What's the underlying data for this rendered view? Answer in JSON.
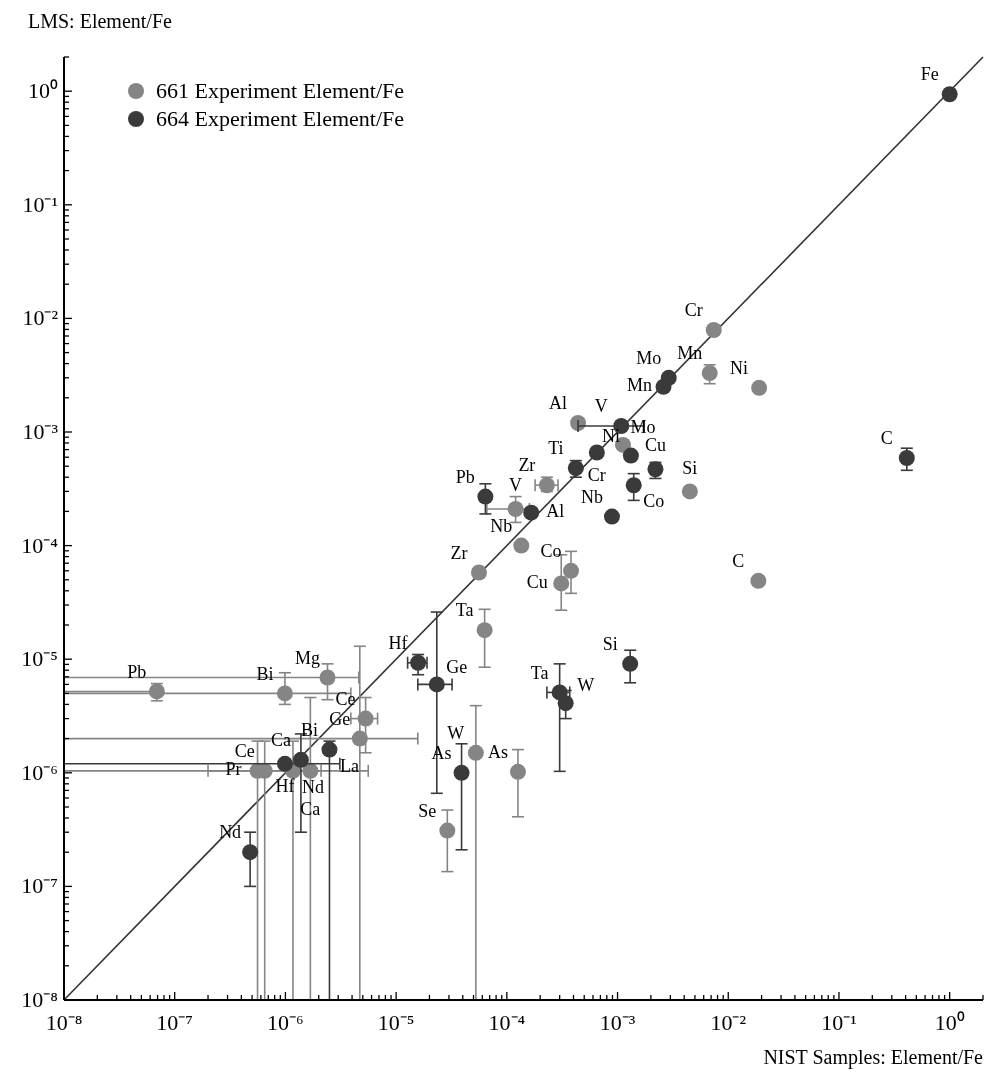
{
  "chart_data": {
    "type": "scatter",
    "xlabel": "NIST Samples: Element/Fe",
    "ylabel": "LMS: Element/Fe",
    "log": "xy",
    "legend": "top left",
    "marker": "circle",
    "grid": false,
    "xlim": [
      1e-08,
      2
    ],
    "ylim": [
      1e-08,
      2
    ],
    "xticks": [
      {
        "value": 1e-08,
        "label": "10⁻⁸"
      },
      {
        "value": 2e-08,
        "label": null
      },
      {
        "value": 3e-08,
        "label": null
      },
      {
        "value": 4e-08,
        "label": null
      },
      {
        "value": 5e-08,
        "label": null
      },
      {
        "value": 6e-08,
        "label": null
      },
      {
        "value": 7e-08,
        "label": null
      },
      {
        "value": 8e-08,
        "label": null
      },
      {
        "value": 9e-08,
        "label": null
      },
      {
        "value": 1e-07,
        "label": "10⁻⁷"
      },
      {
        "value": 2e-07,
        "label": null
      },
      {
        "value": 3e-07,
        "label": null
      },
      {
        "value": 4e-07,
        "label": null
      },
      {
        "value": 5e-07,
        "label": null
      },
      {
        "value": 6e-07,
        "label": null
      },
      {
        "value": 7e-07,
        "label": null
      },
      {
        "value": 8e-07,
        "label": null
      },
      {
        "value": 9e-07,
        "label": null
      },
      {
        "value": 1e-06,
        "label": "10⁻⁶"
      },
      {
        "value": 2e-06,
        "label": null
      },
      {
        "value": 3e-06,
        "label": null
      },
      {
        "value": 4e-06,
        "label": null
      },
      {
        "value": 5e-06,
        "label": null
      },
      {
        "value": 6e-06,
        "label": null
      },
      {
        "value": 7e-06,
        "label": null
      },
      {
        "value": 8e-06,
        "label": null
      },
      {
        "value": 9e-06,
        "label": null
      },
      {
        "value": 1e-05,
        "label": "10⁻⁵"
      },
      {
        "value": 2e-05,
        "label": null
      },
      {
        "value": 3e-05,
        "label": null
      },
      {
        "value": 4e-05,
        "label": null
      },
      {
        "value": 5e-05,
        "label": null
      },
      {
        "value": 6e-05,
        "label": null
      },
      {
        "value": 7e-05,
        "label": null
      },
      {
        "value": 8e-05,
        "label": null
      },
      {
        "value": 9e-05,
        "label": null
      },
      {
        "value": 0.0001,
        "label": "10⁻⁴"
      },
      {
        "value": 0.0002,
        "label": null
      },
      {
        "value": 0.0003,
        "label": null
      },
      {
        "value": 0.0004,
        "label": null
      },
      {
        "value": 0.0005,
        "label": null
      },
      {
        "value": 0.0006,
        "label": null
      },
      {
        "value": 0.0007,
        "label": null
      },
      {
        "value": 0.0008,
        "label": null
      },
      {
        "value": 0.0009,
        "label": null
      },
      {
        "value": 0.001,
        "label": "10⁻³"
      },
      {
        "value": 0.002,
        "label": null
      },
      {
        "value": 0.003,
        "label": null
      },
      {
        "value": 0.004,
        "label": null
      },
      {
        "value": 0.005,
        "label": null
      },
      {
        "value": 0.006,
        "label": null
      },
      {
        "value": 0.007,
        "label": null
      },
      {
        "value": 0.008,
        "label": null
      },
      {
        "value": 0.009,
        "label": null
      },
      {
        "value": 0.01,
        "label": "10⁻²"
      },
      {
        "value": 0.02,
        "label": null
      },
      {
        "value": 0.03,
        "label": null
      },
      {
        "value": 0.04,
        "label": null
      },
      {
        "value": 0.05,
        "label": null
      },
      {
        "value": 0.06,
        "label": null
      },
      {
        "value": 0.07,
        "label": null
      },
      {
        "value": 0.08,
        "label": null
      },
      {
        "value": 0.09,
        "label": null
      },
      {
        "value": 0.1,
        "label": "10⁻¹"
      },
      {
        "value": 0.2,
        "label": null
      },
      {
        "value": 0.3,
        "label": null
      },
      {
        "value": 0.4,
        "label": null
      },
      {
        "value": 0.5,
        "label": null
      },
      {
        "value": 0.6,
        "label": null
      },
      {
        "value": 0.7,
        "label": null
      },
      {
        "value": 0.8,
        "label": null
      },
      {
        "value": 0.9,
        "label": null
      },
      {
        "value": 1,
        "label": "10⁰"
      },
      {
        "value": 2,
        "label": null
      }
    ],
    "yticks": [
      {
        "value": 1e-08,
        "label": "10⁻⁸"
      },
      {
        "value": 2e-08,
        "label": null
      },
      {
        "value": 3e-08,
        "label": null
      },
      {
        "value": 4e-08,
        "label": null
      },
      {
        "value": 5e-08,
        "label": null
      },
      {
        "value": 6e-08,
        "label": null
      },
      {
        "value": 7e-08,
        "label": null
      },
      {
        "value": 8e-08,
        "label": null
      },
      {
        "value": 9e-08,
        "label": null
      },
      {
        "value": 1e-07,
        "label": "10⁻⁷"
      },
      {
        "value": 2e-07,
        "label": null
      },
      {
        "value": 3e-07,
        "label": null
      },
      {
        "value": 4e-07,
        "label": null
      },
      {
        "value": 5e-07,
        "label": null
      },
      {
        "value": 6e-07,
        "label": null
      },
      {
        "value": 7e-07,
        "label": null
      },
      {
        "value": 8e-07,
        "label": null
      },
      {
        "value": 9e-07,
        "label": null
      },
      {
        "value": 1e-06,
        "label": "10⁻⁶"
      },
      {
        "value": 2e-06,
        "label": null
      },
      {
        "value": 3e-06,
        "label": null
      },
      {
        "value": 4e-06,
        "label": null
      },
      {
        "value": 5e-06,
        "label": null
      },
      {
        "value": 6e-06,
        "label": null
      },
      {
        "value": 7e-06,
        "label": null
      },
      {
        "value": 8e-06,
        "label": null
      },
      {
        "value": 9e-06,
        "label": null
      },
      {
        "value": 1e-05,
        "label": "10⁻⁵"
      },
      {
        "value": 2e-05,
        "label": null
      },
      {
        "value": 3e-05,
        "label": null
      },
      {
        "value": 4e-05,
        "label": null
      },
      {
        "value": 5e-05,
        "label": null
      },
      {
        "value": 6e-05,
        "label": null
      },
      {
        "value": 7e-05,
        "label": null
      },
      {
        "value": 8e-05,
        "label": null
      },
      {
        "value": 9e-05,
        "label": null
      },
      {
        "value": 0.0001,
        "label": "10⁻⁴"
      },
      {
        "value": 0.0002,
        "label": null
      },
      {
        "value": 0.0003,
        "label": null
      },
      {
        "value": 0.0004,
        "label": null
      },
      {
        "value": 0.0005,
        "label": null
      },
      {
        "value": 0.0006,
        "label": null
      },
      {
        "value": 0.0007,
        "label": null
      },
      {
        "value": 0.0008,
        "label": null
      },
      {
        "value": 0.0009,
        "label": null
      },
      {
        "value": 0.001,
        "label": "10⁻³"
      },
      {
        "value": 0.002,
        "label": null
      },
      {
        "value": 0.003,
        "label": null
      },
      {
        "value": 0.004,
        "label": null
      },
      {
        "value": 0.005,
        "label": null
      },
      {
        "value": 0.006,
        "label": null
      },
      {
        "value": 0.007,
        "label": null
      },
      {
        "value": 0.008,
        "label": null
      },
      {
        "value": 0.009,
        "label": null
      },
      {
        "value": 0.01,
        "label": "10⁻²"
      },
      {
        "value": 0.02,
        "label": null
      },
      {
        "value": 0.03,
        "label": null
      },
      {
        "value": 0.04,
        "label": null
      },
      {
        "value": 0.05,
        "label": null
      },
      {
        "value": 0.06,
        "label": null
      },
      {
        "value": 0.07,
        "label": null
      },
      {
        "value": 0.08,
        "label": null
      },
      {
        "value": 0.09,
        "label": null
      },
      {
        "value": 0.1,
        "label": "10⁻¹"
      },
      {
        "value": 0.2,
        "label": null
      },
      {
        "value": 0.3,
        "label": null
      },
      {
        "value": 0.4,
        "label": null
      },
      {
        "value": 0.5,
        "label": null
      },
      {
        "value": 0.6,
        "label": null
      },
      {
        "value": 0.7,
        "label": null
      },
      {
        "value": 0.8,
        "label": null
      },
      {
        "value": 0.9,
        "label": null
      },
      {
        "value": 1,
        "label": "10⁰"
      },
      {
        "value": 2,
        "label": null
      }
    ],
    "series": [
      {
        "type": "line",
        "marker": "none",
        "color": "#333333",
        "x": [
          1e-08,
          2
        ],
        "values": [
          1e-08,
          2
        ]
      },
      {
        "name": "661 Experiment Element/Fe",
        "color": "#858585",
        "x": [
          0.0074,
          0.0068,
          0.019,
          0.00044,
          0.00112,
          0.0045,
          0.00023,
          0.00012,
          0.000135,
          5.6e-05,
          0.00038,
          0.00031,
          0.0187,
          6.3e-05,
          5.25e-05,
          0.000126,
          6.9e-08,
          9.9e-07,
          2.4e-06,
          5.3e-06,
          4.7e-06,
          5.6e-07,
          6.5e-07,
          1.17e-06,
          1.68e-06,
          2.9e-05
        ],
        "values": [
          0.0079,
          0.0033,
          0.00245,
          0.0012,
          0.00077,
          0.0003,
          0.00034,
          0.00021,
          0.0001,
          5.8e-05,
          6e-05,
          4.65e-05,
          4.9e-05,
          1.8e-05,
          1.5e-06,
          1.02e-06,
          5.2e-06,
          5e-06,
          6.9e-06,
          3e-06,
          2e-06,
          1.04e-06,
          1.04e-06,
          1.04e-06,
          1.04e-06,
          3.1e-07
        ],
        "errors": [
          null,
          [
            0.00266,
            0.0039
          ],
          null,
          null,
          null,
          null,
          [
            0.0003,
            0.0004
          ],
          [
            0.00016,
            0.00027
          ],
          null,
          null,
          [
            3.8e-05,
            8.9e-05
          ],
          [
            2.7e-05,
            8.3e-05
          ],
          null,
          [
            8.5e-06,
            2.75e-05
          ],
          [
            1e-08,
            3.9e-06
          ],
          [
            4.1e-07,
            1.6e-06
          ],
          [
            4.3e-06,
            6.1e-06
          ],
          [
            4e-06,
            7.6e-06
          ],
          [
            4.4e-06,
            9.1e-06
          ],
          [
            1.5e-06,
            4.6e-06
          ],
          [
            1e-08,
            1.3e-05
          ],
          [
            1e-08,
            1.9e-06
          ],
          [
            1e-08,
            1.9e-06
          ],
          [
            1e-08,
            1.9e-06
          ],
          [
            1e-08,
            4.6e-06
          ],
          [
            1.35e-07,
            4.7e-07
          ]
        ],
        "xerrors": [
          null,
          null,
          null,
          null,
          null,
          null,
          [
            0.00018,
            0.00029
          ],
          [
            6.6e-05,
            0.00016
          ],
          null,
          null,
          null,
          null,
          null,
          null,
          null,
          null,
          [
            1e-08,
            6.9e-08
          ],
          [
            1e-08,
            3.9e-06
          ],
          [
            1e-08,
            4.6e-06
          ],
          [
            3.9e-06,
            6.8e-06
          ],
          [
            1e-08,
            1.57e-05
          ],
          [
            1e-08,
            2.1e-06
          ],
          [
            2e-07,
            5.6e-06
          ],
          null,
          null,
          null
        ]
      },
      {
        "name": "664 Experiment Element/Fe",
        "color": "#3a3a3a",
        "x": [
          1,
          0.0029,
          0.0026,
          0.00108,
          0.00132,
          0.00065,
          0.00042,
          0.0022,
          0.0014,
          0.41,
          0.00089,
          6.4e-05,
          0.000166,
          0.0013,
          0.0003,
          0.00034,
          1.58e-05,
          2.33e-05,
          2.5e-06,
          1.38e-06,
          9.9e-07,
          4.8e-07,
          3.9e-05
        ],
        "values": [
          0.94,
          0.003,
          0.0025,
          0.00113,
          0.00062,
          0.00066,
          0.00048,
          0.00047,
          0.00034,
          0.00059,
          0.00018,
          0.00027,
          0.000195,
          9.1e-06,
          5.1e-06,
          4.1e-06,
          9.3e-06,
          6e-06,
          1.6e-06,
          1.3e-06,
          1.2e-06,
          2e-07,
          1e-06
        ],
        "errors": [
          null,
          null,
          null,
          null,
          null,
          null,
          [
            0.0004,
            0.00056
          ],
          [
            0.00039,
            0.00054
          ],
          [
            0.00025,
            0.00043
          ],
          [
            0.00046,
            0.00072
          ],
          null,
          [
            0.00019,
            0.00035
          ],
          null,
          [
            6.2e-06,
            1.2e-05
          ],
          [
            1.03e-06,
            9.1e-06
          ],
          [
            3e-06,
            5.3e-06
          ],
          [
            7.3e-06,
            1.1e-05
          ],
          [
            6.6e-07,
            2.6e-05
          ],
          [
            1e-08,
            1.9e-06
          ],
          [
            3e-07,
            2.2e-06
          ],
          null,
          [
            1e-07,
            3e-07
          ],
          [
            2.1e-07,
            1.8e-06
          ]
        ],
        "xerrors": [
          null,
          null,
          null,
          [
            0.00044,
            0.00174
          ],
          null,
          null,
          null,
          null,
          null,
          null,
          null,
          null,
          null,
          null,
          [
            0.00023,
            0.00037
          ],
          null,
          [
            1.27e-05,
            1.9e-05
          ],
          [
            1.57e-05,
            3.2e-05
          ],
          null,
          null,
          [
            1e-08,
            3.1e-06
          ],
          null,
          null
        ]
      }
    ],
    "annotations": [
      {
        "text": "Fe",
        "x": 1,
        "y": 0.94
      },
      {
        "text": "Cr",
        "x": 0.0074,
        "y": 0.0079
      },
      {
        "text": "Mo",
        "x": 0.0029,
        "y": 0.003
      },
      {
        "text": "Mn",
        "x": 0.0026,
        "y": 0.0025
      },
      {
        "text": "Ni",
        "x": 0.019,
        "y": 0.00245
      },
      {
        "text": "Mn",
        "x": 0.0068,
        "y": 0.0033
      },
      {
        "text": "Al",
        "x": 0.00044,
        "y": 0.0012
      },
      {
        "text": "V",
        "x": 0.00108,
        "y": 0.00113
      },
      {
        "text": "Mo",
        "x": 0.00112,
        "y": 0.00077
      },
      {
        "text": "Cr",
        "x": 0.00065,
        "y": 0.00066
      },
      {
        "text": "Ni",
        "x": 0.00132,
        "y": 0.00062
      },
      {
        "text": "Zr",
        "x": 0.00023,
        "y": 0.00034
      },
      {
        "text": "V",
        "x": 0.00012,
        "y": 0.00021
      },
      {
        "text": "Co",
        "x": 0.0014,
        "y": 0.00034
      },
      {
        "text": "Si",
        "x": 0.0045,
        "y": 0.0003
      },
      {
        "text": "Cu",
        "x": 0.0022,
        "y": 0.00047
      },
      {
        "text": "C",
        "x": 0.41,
        "y": 0.00059
      },
      {
        "text": "Ti",
        "x": 0.00042,
        "y": 0.00048
      },
      {
        "text": "Al",
        "x": 0.000166,
        "y": 0.000195
      },
      {
        "text": "Nb",
        "x": 0.00089,
        "y": 0.00018
      },
      {
        "text": "Pb",
        "x": 6.4e-05,
        "y": 0.00027
      },
      {
        "text": "Nb",
        "x": 0.000135,
        "y": 0.0001
      },
      {
        "text": "Co",
        "x": 0.00038,
        "y": 6e-05
      },
      {
        "text": "Cu",
        "x": 0.00031,
        "y": 4.65e-05
      },
      {
        "text": "C",
        "x": 0.0187,
        "y": 4.9e-05
      },
      {
        "text": "Ta",
        "x": 6.3e-05,
        "y": 1.8e-05
      },
      {
        "text": "Si",
        "x": 0.0013,
        "y": 9.1e-06
      },
      {
        "text": "Ta",
        "x": 0.0003,
        "y": 5.1e-06
      },
      {
        "text": "W",
        "x": 0.00034,
        "y": 4.1e-06
      },
      {
        "text": "W",
        "x": 5.25e-05,
        "y": 1.5e-06
      },
      {
        "text": "As",
        "x": 0.000126,
        "y": 1.02e-06
      },
      {
        "text": "As",
        "x": 3.9e-05,
        "y": 1e-06
      },
      {
        "text": "Zr",
        "x": 5.6e-05,
        "y": 5.8e-05
      },
      {
        "text": "Pb",
        "x": 6.9e-08,
        "y": 5.2e-06
      },
      {
        "text": "Bi",
        "x": 9.9e-07,
        "y": 5e-06
      },
      {
        "text": "Mg",
        "x": 2.4e-06,
        "y": 6.9e-06
      },
      {
        "text": "Hf",
        "x": 1.58e-05,
        "y": 9.3e-06
      },
      {
        "text": "Ge",
        "x": 2.33e-05,
        "y": 6e-06
      },
      {
        "text": "Ce",
        "x": 5.3e-06,
        "y": 3e-06
      },
      {
        "text": "Ce",
        "x": 6.5e-07,
        "y": 1.04e-06
      },
      {
        "text": "Ca",
        "x": 1.38e-06,
        "y": 1.3e-06
      },
      {
        "text": "Pr",
        "x": 5.6e-07,
        "y": 1.04e-06
      },
      {
        "text": "Hf",
        "x": 9.9e-07,
        "y": 1.2e-06
      },
      {
        "text": "Ge",
        "x": 4.7e-06,
        "y": 2e-06
      },
      {
        "text": "Bi",
        "x": 2.5e-06,
        "y": 1.6e-06
      },
      {
        "text": "La",
        "x": 2.5e-06,
        "y": 1.6e-06
      },
      {
        "text": "Nd",
        "x": 1.17e-06,
        "y": 1.04e-06
      },
      {
        "text": "Ca",
        "x": 1.68e-06,
        "y": 1.04e-06
      },
      {
        "text": "Se",
        "x": 2.9e-05,
        "y": 3.1e-07
      },
      {
        "text": "Nd",
        "x": 4.8e-07,
        "y": 2e-07
      }
    ]
  }
}
